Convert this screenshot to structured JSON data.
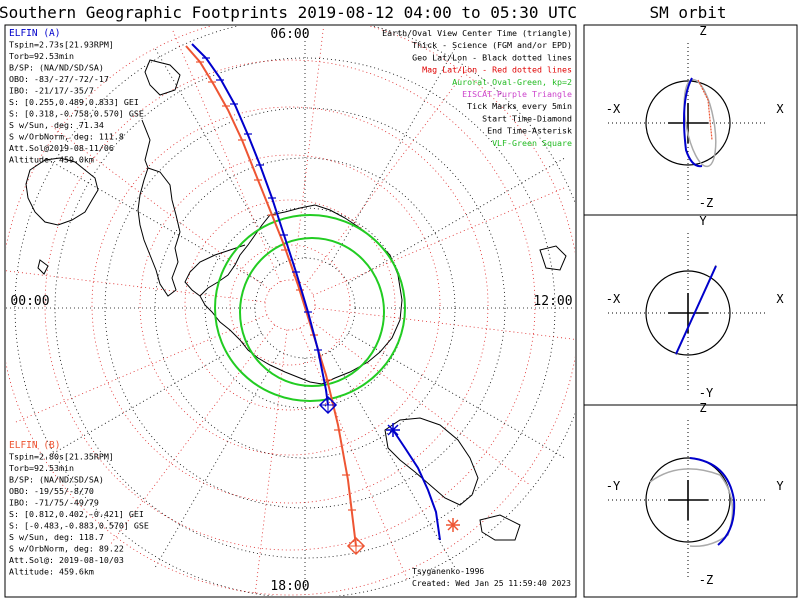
{
  "title": "Southern Geographic Footprints 2019-08-12 04:00 to 05:30 UTC",
  "side_title": "SM orbit",
  "hours": {
    "top": "06:00",
    "left": "00:00",
    "right": "12:00",
    "bottom": "18:00"
  },
  "legend": [
    {
      "text": "Earth/Oval View Center Time (triangle)",
      "color": "#000000"
    },
    {
      "text": "Thick - Science (FGM and/or EPD)",
      "color": "#000000"
    },
    {
      "text": "Geo Lat/Lon - Black dotted lines",
      "color": "#000000"
    },
    {
      "text": "Mag Lat/Lon - Red dotted lines",
      "color": "#e00000"
    },
    {
      "text": "Auroral Oval-Green, kp=2",
      "color": "#22bb22"
    },
    {
      "text": "EISCAT-Purple Triangle",
      "color": "#cc44cc"
    },
    {
      "text": "Tick Marks every 5min",
      "color": "#000000"
    },
    {
      "text": "Start Time-Diamond",
      "color": "#000000"
    },
    {
      "text": "End Time-Asterisk",
      "color": "#000000"
    },
    {
      "text": "VLF-Green Square",
      "color": "#22bb22"
    }
  ],
  "elfin_a": {
    "color": "#0000cc",
    "lines": [
      "ELFIN (A)",
      "Tspin=2.73s[21.93RPM]",
      "Torb=92.53min",
      "B/SP: (NA/ND/SD/SA)",
      "OBO: -83/-27/-72/-17",
      "IBO: -21/17/-35/7",
      "S: [0.255,0.489,0.833] GEI",
      "S: [0.318,-0.758,0.570] GSE",
      "S w/Sun, deg: 71.34",
      "S w/OrbNorm, deg: 111.8",
      "Att.Sol@2019-08-11/06",
      "Altitude: 459.0km"
    ]
  },
  "elfin_b": {
    "color": "#ee5533",
    "lines": [
      "ELFIN (B)",
      "Tspin=2.80s[21.35RPM]",
      "Torb=92.53min",
      "B/SP: (NA/ND/SD/SA)",
      "OBO: -19/55/-8/70",
      "IBO: -71/75/-49/79",
      "S: [0.812,0.402,-0.421] GEI",
      "S: [-0.483,-0.883,0.570] GSE",
      "S w/Sun, deg: 118.7",
      "S w/OrbNorm, deg: 89.22",
      "Att.Sol@: 2019-08-10/03",
      "Altitude: 459.6km"
    ]
  },
  "credit": "Tsyganenko-1996",
  "created": "Created: Wed Jan 25 11:59:40 2023",
  "sm_panels": [
    {
      "top": "Z",
      "bottom": "-Z",
      "left": "-X",
      "right": "X"
    },
    {
      "top": "Y",
      "bottom": "-Y",
      "left": "-X",
      "right": "X"
    },
    {
      "top": "Z",
      "bottom": "-Z",
      "left": "-Y",
      "right": "Y"
    }
  ],
  "colors": {
    "elfin_a": "#0000cc",
    "elfin_b": "#ee5533",
    "oval": "#22cc22",
    "mag_grid": "#dd2222",
    "geo_grid": "#000000"
  }
}
